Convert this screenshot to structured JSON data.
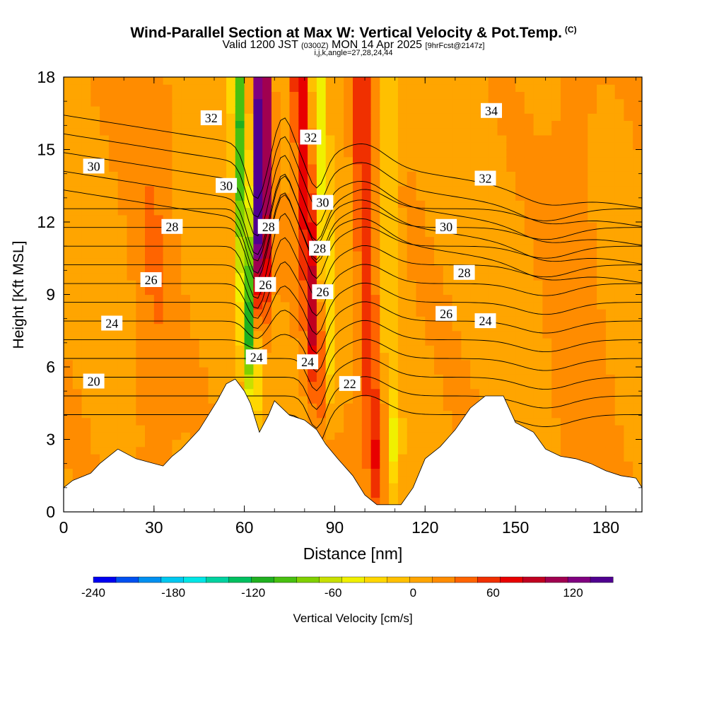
{
  "title": {
    "line1": "Wind-Parallel Section at Max W: Vertical Velocity & Pot.Temp.",
    "copyright": "(C)",
    "line2_main": "Valid 1200 JST",
    "line2_utc": "(0300Z)",
    "line2_date": "MON 14 Apr 2025",
    "line2_fcst": "[9hrFcst@2147z]",
    "line3": "i,j,k,angle=27,28,24,44"
  },
  "chart_data": {
    "type": "heatmap",
    "xlabel": "Distance [nm]",
    "ylabel": "Height [Kft MSL]",
    "xlim": [
      0,
      192
    ],
    "ylim": [
      0,
      18
    ],
    "x_ticks": [
      "0",
      "30",
      "60",
      "90",
      "120",
      "150",
      "180"
    ],
    "y_ticks": [
      "0",
      "3",
      "6",
      "9",
      "12",
      "15",
      "18"
    ],
    "x_tick_values": [
      0,
      30,
      60,
      90,
      120,
      150,
      180
    ],
    "y_tick_values": [
      0,
      3,
      6,
      9,
      12,
      15,
      18
    ],
    "colorbar": {
      "label": "Vertical Velocity [cm/s]",
      "tick_labels": [
        "-240",
        "-180",
        "-120",
        "-60",
        "0",
        "60",
        "120"
      ],
      "tick_values": [
        -240,
        -180,
        -120,
        -60,
        0,
        60,
        120
      ],
      "min": -240,
      "max": 150,
      "colors": [
        "#0000f0",
        "#0050f0",
        "#0090f0",
        "#00c8f0",
        "#00e6e6",
        "#00d2a0",
        "#00c060",
        "#20b020",
        "#48c010",
        "#80d000",
        "#c8e000",
        "#f0f000",
        "#ffd700",
        "#ffc000",
        "#ffa500",
        "#ff8c00",
        "#ff6400",
        "#f03000",
        "#e80000",
        "#c00020",
        "#a00050",
        "#800080",
        "#500090"
      ]
    },
    "theta_contour_labels": [
      {
        "text": "34",
        "x": 142,
        "y": 16.6
      },
      {
        "text": "32",
        "x": 49,
        "y": 16.3
      },
      {
        "text": "32",
        "x": 82,
        "y": 15.5
      },
      {
        "text": "32",
        "x": 140,
        "y": 13.8
      },
      {
        "text": "30",
        "x": 10,
        "y": 14.3
      },
      {
        "text": "30",
        "x": 54,
        "y": 13.5
      },
      {
        "text": "30",
        "x": 86,
        "y": 12.8
      },
      {
        "text": "30",
        "x": 127,
        "y": 11.8
      },
      {
        "text": "28",
        "x": 36,
        "y": 11.8
      },
      {
        "text": "28",
        "x": 68,
        "y": 11.8
      },
      {
        "text": "28",
        "x": 85,
        "y": 10.9
      },
      {
        "text": "28",
        "x": 133,
        "y": 9.9
      },
      {
        "text": "26",
        "x": 29,
        "y": 9.6
      },
      {
        "text": "26",
        "x": 67,
        "y": 9.4
      },
      {
        "text": "26",
        "x": 86,
        "y": 9.1
      },
      {
        "text": "26",
        "x": 127,
        "y": 8.2
      },
      {
        "text": "24",
        "x": 16,
        "y": 7.8
      },
      {
        "text": "24",
        "x": 140,
        "y": 7.9
      },
      {
        "text": "24",
        "x": 64,
        "y": 6.4
      },
      {
        "text": "24",
        "x": 81,
        "y": 6.2
      },
      {
        "text": "22",
        "x": 95,
        "y": 5.3
      },
      {
        "text": "20",
        "x": 10,
        "y": 5.4
      }
    ],
    "terrain_kft": [
      [
        0,
        1.0
      ],
      [
        3,
        1.3
      ],
      [
        9,
        1.6
      ],
      [
        12,
        2.0
      ],
      [
        15,
        2.3
      ],
      [
        18,
        2.6
      ],
      [
        24,
        2.2
      ],
      [
        33,
        1.9
      ],
      [
        36,
        2.3
      ],
      [
        39,
        2.6
      ],
      [
        45,
        3.4
      ],
      [
        48,
        4.0
      ],
      [
        51,
        4.6
      ],
      [
        54,
        5.3
      ],
      [
        57,
        5.5
      ],
      [
        60,
        5.0
      ],
      [
        62,
        4.5
      ],
      [
        65,
        3.3
      ],
      [
        68,
        4.0
      ],
      [
        70,
        4.6
      ],
      [
        75,
        4.0
      ],
      [
        80,
        3.8
      ],
      [
        84,
        3.4
      ],
      [
        87,
        2.8
      ],
      [
        91,
        2.2
      ],
      [
        96,
        1.5
      ],
      [
        100,
        0.7
      ],
      [
        104,
        0.3
      ],
      [
        108,
        0.3
      ],
      [
        112,
        0.3
      ],
      [
        116,
        1.0
      ],
      [
        120,
        2.2
      ],
      [
        125,
        2.7
      ],
      [
        130,
        3.4
      ],
      [
        135,
        4.3
      ],
      [
        140,
        4.8
      ],
      [
        146,
        4.8
      ],
      [
        150,
        3.7
      ],
      [
        156,
        3.3
      ],
      [
        160,
        2.6
      ],
      [
        165,
        2.3
      ],
      [
        170,
        2.2
      ],
      [
        175,
        2.0
      ],
      [
        180,
        1.7
      ],
      [
        185,
        1.5
      ],
      [
        190,
        1.4
      ],
      [
        192,
        1.0
      ]
    ]
  }
}
